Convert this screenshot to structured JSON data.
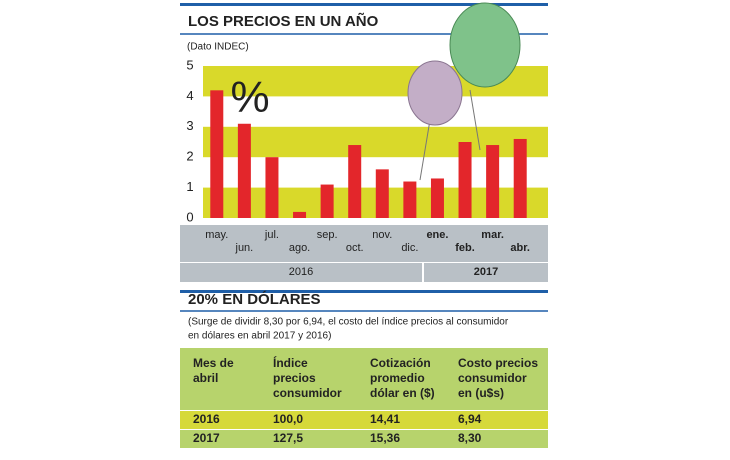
{
  "chart_data": {
    "type": "bar",
    "title": "LOS PRECIOS EN UN AÑO",
    "subtitle": "(Dato INDEC)",
    "annotation": "%",
    "categories": [
      "may.",
      "jun.",
      "jul.",
      "ago.",
      "sep.",
      "oct.",
      "nov.",
      "dic.",
      "ene.",
      "feb.",
      "mar.",
      "abr."
    ],
    "values": [
      4.2,
      3.1,
      2.0,
      0.2,
      1.1,
      2.4,
      1.6,
      1.2,
      1.3,
      2.5,
      2.4,
      2.6
    ],
    "color": "#e3262b",
    "ylim": [
      0,
      5
    ],
    "yticks": [
      0,
      1,
      2,
      3,
      4,
      5
    ],
    "band_color": "#d9d92a",
    "years": [
      "2016",
      "2017"
    ]
  },
  "table_section": {
    "title": "20% EN DÓLARES",
    "note": [
      "(Surge de dividir 8,30 por 6,94, el costo del índice precios al consumidor",
      "en dólares en abril 2017 y 2016)"
    ],
    "header": [
      [
        "Mes de",
        "abril"
      ],
      [
        "Índice",
        "precios",
        "consumidor"
      ],
      [
        "Cotización",
        "promedio",
        "dólar en ($)"
      ],
      [
        "Costo precios",
        "consumidor",
        "en (u$s)"
      ]
    ],
    "rows": [
      [
        "2016",
        "100,0",
        "14,41",
        "6,94"
      ],
      [
        "2017",
        "127,5",
        "15,36",
        "8,30"
      ]
    ]
  }
}
